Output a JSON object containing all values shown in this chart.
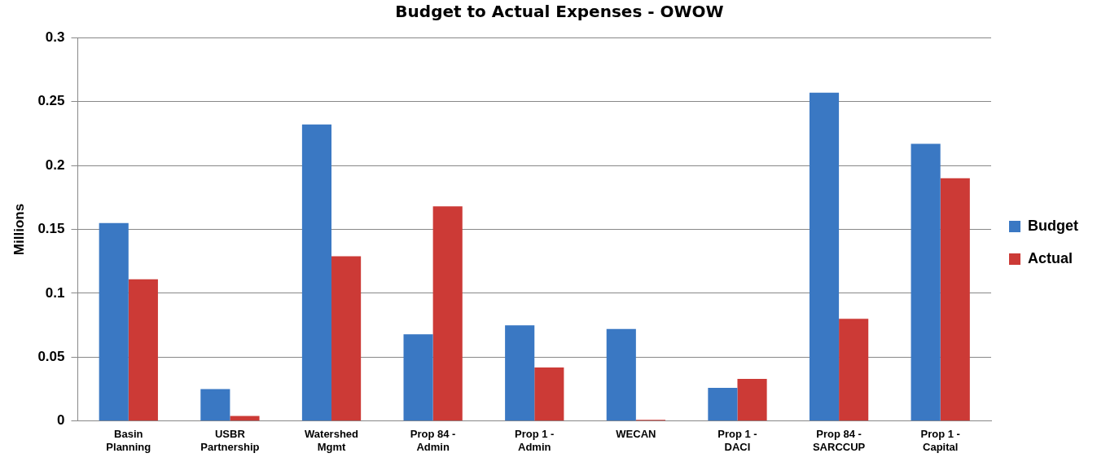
{
  "chart_data": {
    "type": "bar",
    "title": "Budget to Actual Expenses - OWOW",
    "ylabel": "Millions",
    "categories": [
      "Basin Planning",
      "USBR Partnership",
      "Watershed Mgmt",
      "Prop 84 - Admin",
      "Prop 1 - Admin",
      "WECAN",
      "Prop 1 - DACI",
      "Prop 84 - SARCCUP",
      "Prop 1 - Capital"
    ],
    "series": [
      {
        "name": "Budget",
        "color": "#3a78c3",
        "values": [
          0.155,
          0.025,
          0.232,
          0.068,
          0.075,
          0.072,
          0.026,
          0.257,
          0.217
        ]
      },
      {
        "name": "Actual",
        "color": "#cc3a36",
        "values": [
          0.111,
          0.004,
          0.129,
          0.168,
          0.042,
          0.001,
          0.033,
          0.08,
          0.19
        ]
      }
    ],
    "ylim": [
      0,
      0.3
    ],
    "yticks": [
      0,
      0.05,
      0.1,
      0.15,
      0.2,
      0.25,
      0.3
    ],
    "grid": "y",
    "legend": "right"
  }
}
